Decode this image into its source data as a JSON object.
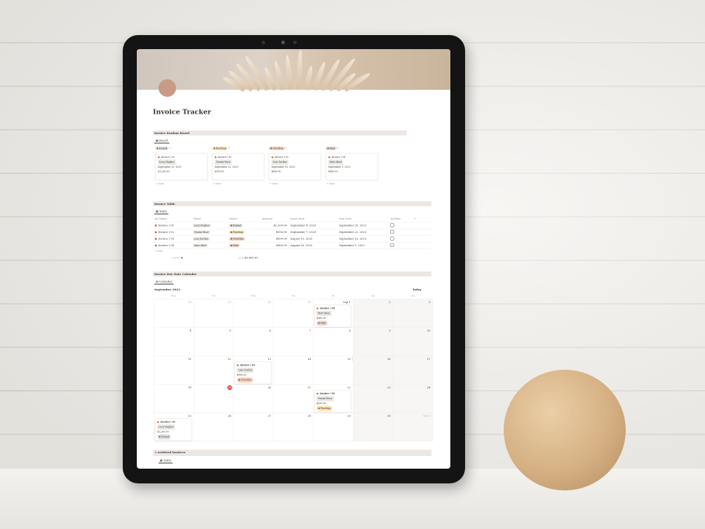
{
  "page": {
    "title": "Invoice Tracker"
  },
  "colors": {
    "Issued": "#e3e2e0",
    "Pending": "#fbe4b4",
    "Overdue": "#f7d6c0",
    "Paid": "#f1d8d3",
    "today": "#e5534b"
  },
  "kanban": {
    "header": "Invoice Kanban Board",
    "tab": "Board",
    "new_label": "+ New",
    "columns": [
      {
        "status": "Issued",
        "count": "1",
        "card": {
          "name": "Invoice | 01",
          "client": "Lucy Hughes",
          "date": "September 25, 2023",
          "amount": "$1,200.00"
        }
      },
      {
        "status": "Pending",
        "count": "1",
        "card": {
          "name": "Invoice | 02",
          "client": "Naomi Moor",
          "date": "September 22, 2023",
          "amount": "$550.00"
        }
      },
      {
        "status": "Overdue",
        "count": "1",
        "card": {
          "name": "Invoice | 03",
          "client": "Lisa Gordon",
          "date": "September 13, 2023",
          "amount": "$890.00"
        }
      },
      {
        "status": "Paid",
        "count": "1",
        "card": {
          "name": "Invoice | 04",
          "client": "Matt Shiel",
          "date": "September 1, 2023",
          "amount": "$960.00"
        }
      }
    ]
  },
  "table": {
    "header": "Invoice Table",
    "tab": "Table",
    "new_label": "+ New",
    "columns": [
      "Aa Name",
      "Client",
      "Status",
      "Amount",
      "Issue Date",
      "Due Date",
      "Archive",
      "+",
      "···"
    ],
    "rows": [
      {
        "name": "Invoice | 01",
        "client": "Lucy Hughes",
        "status": "Issued",
        "amount": "$1,200.00",
        "issue": "September 4, 2023",
        "due": "September 25, 2023"
      },
      {
        "name": "Invoice | 02",
        "client": "Naomi Moor",
        "status": "Pending",
        "amount": "$550.00",
        "issue": "September 7, 2023",
        "due": "September 22, 2023"
      },
      {
        "name": "Invoice | 03",
        "client": "Lisa Gordon",
        "status": "Overdue",
        "amount": "$890.00",
        "issue": "August 15, 2023",
        "due": "September 13, 2023"
      },
      {
        "name": "Invoice | 04",
        "client": "Matt Shiel",
        "status": "Paid",
        "amount": "$960.00",
        "issue": "August 16, 2023",
        "due": "September 1, 2023"
      }
    ],
    "count_label": "COUNT",
    "count": "4",
    "sum_label": "SUM",
    "sum": "$3,600.00"
  },
  "calendar": {
    "header": "Invoice Due Date Calendar",
    "tab": "Calendar",
    "month": "September 2023",
    "today_label": "Today",
    "prev": "‹",
    "next": "›",
    "day_names": [
      "Mon",
      "Tue",
      "Wed",
      "Thu",
      "Fri",
      "Sat",
      "Sun"
    ],
    "days": [
      "28",
      "29",
      "30",
      "31",
      "Sep 1",
      "2",
      "3",
      "4",
      "5",
      "6",
      "7",
      "8",
      "9",
      "10",
      "11",
      "12",
      "13",
      "14",
      "15",
      "16",
      "17",
      "18",
      "19",
      "20",
      "21",
      "22",
      "23",
      "24",
      "25",
      "26",
      "27",
      "28",
      "29",
      "30",
      "Oct 1"
    ],
    "today": "19",
    "events": [
      {
        "day": "Sep 1",
        "name": "Invoice | 04",
        "client": "Matt Shiel",
        "amount": "$960.00",
        "status": "Paid"
      },
      {
        "day": "13",
        "name": "Invoice | 03",
        "client": "Lisa Gordon",
        "amount": "$890.00",
        "status": "Overdue"
      },
      {
        "day": "22",
        "name": "Invoice | 02",
        "client": "Naomi Moor",
        "amount": "$550.00",
        "status": "Pending"
      },
      {
        "day": "25",
        "name": "Invoice | 01",
        "client": "Lucy Hughes",
        "amount": "$1,200.00",
        "status": "Issued"
      }
    ]
  },
  "archived": {
    "header": "Archived Invoices",
    "tab": "Table"
  }
}
